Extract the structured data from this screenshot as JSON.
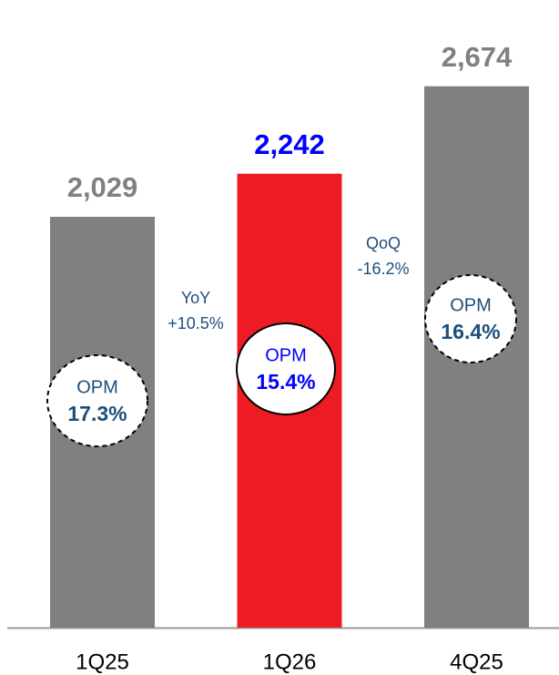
{
  "chart_data": {
    "type": "bar",
    "categories": [
      "1Q25",
      "1Q26",
      "4Q25"
    ],
    "values": [
      2029,
      2242,
      2674
    ],
    "value_labels": [
      "2,029",
      "2,242",
      "2,674"
    ],
    "colors": [
      "#808080",
      "#ed1c24",
      "#808080"
    ],
    "value_label_colors": [
      "#808080",
      "#0000ff",
      "#808080"
    ],
    "highlight": "1Q26",
    "ylim": [
      0,
      3100
    ],
    "opm_label": "OPM",
    "opm": [
      "17.3%",
      "15.4%",
      "16.4%"
    ],
    "changes": [
      {
        "label": "YoY",
        "value": "+10.5%"
      },
      {
        "label": "QoQ",
        "value": "-16.2%"
      }
    ]
  }
}
